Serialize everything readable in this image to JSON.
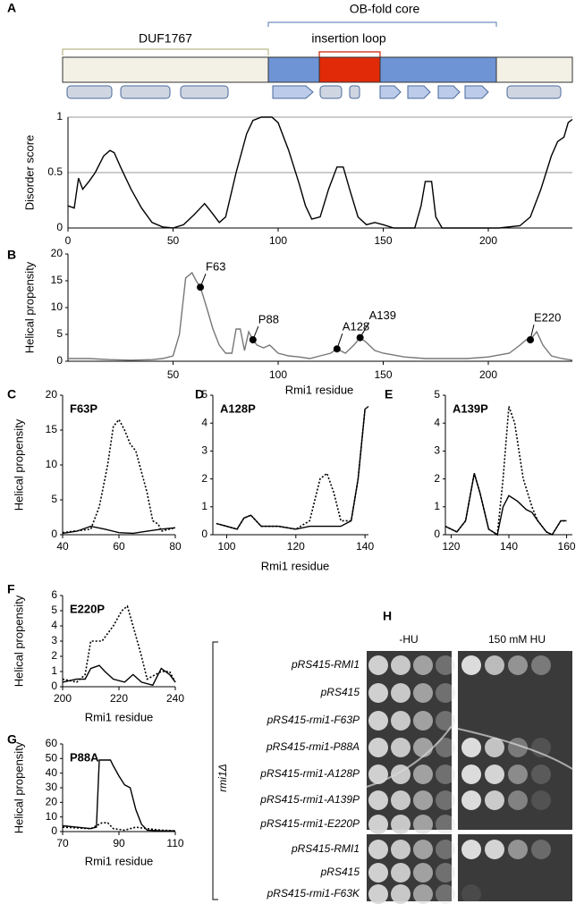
{
  "panel_labels": [
    "A",
    "B",
    "C",
    "D",
    "E",
    "F",
    "G",
    "H"
  ],
  "domain_map": {
    "duf": "DUF1767",
    "ob": "OB-fold core",
    "loop": "insertion loop"
  },
  "chart_data": [
    {
      "type": "line",
      "ylabel": "Disorder score",
      "xlim": [
        0,
        240
      ],
      "ylim": [
        0,
        1
      ],
      "xticks": [
        0,
        50,
        100,
        150,
        200
      ],
      "yticks": [
        0,
        0.5,
        1
      ],
      "grid": true,
      "series": [
        {
          "color": "#000000",
          "dash": false,
          "x": [
            0,
            3,
            5,
            7,
            10,
            13,
            17,
            20,
            22,
            25,
            30,
            35,
            40,
            45,
            50,
            55,
            60,
            63,
            65,
            68,
            72,
            75,
            80,
            85,
            88,
            92,
            97,
            100,
            105,
            110,
            113,
            116,
            120,
            124,
            128,
            131,
            134,
            138,
            142,
            146,
            150,
            155,
            160,
            165,
            168,
            170,
            173,
            175,
            178,
            185,
            195,
            205,
            215,
            220,
            225,
            230,
            233,
            236,
            238,
            240
          ],
          "values": [
            0.2,
            0.18,
            0.45,
            0.35,
            0.42,
            0.5,
            0.65,
            0.7,
            0.68,
            0.55,
            0.35,
            0.18,
            0.05,
            0.01,
            0,
            0.03,
            0.12,
            0.18,
            0.22,
            0.15,
            0.05,
            0.1,
            0.5,
            0.85,
            0.97,
            1,
            1,
            0.95,
            0.7,
            0.4,
            0.2,
            0.08,
            0.1,
            0.35,
            0.55,
            0.55,
            0.35,
            0.1,
            0.03,
            0.05,
            0.03,
            0,
            0,
            0,
            0.2,
            0.42,
            0.42,
            0.1,
            0,
            0,
            0,
            0,
            0.02,
            0.1,
            0.35,
            0.65,
            0.78,
            0.82,
            0.95,
            0.98
          ]
        }
      ]
    },
    {
      "type": "line",
      "ylabel": "Helical propensity",
      "xlabel": "Rmi1 residue",
      "xlim": [
        0,
        240
      ],
      "ylim": [
        0,
        20
      ],
      "xticks": [
        50,
        100,
        150,
        200
      ],
      "yticks": [
        0,
        5,
        10,
        15,
        20
      ],
      "grid": false,
      "series": [
        {
          "color": "#777777",
          "dash": false,
          "x": [
            0,
            10,
            20,
            30,
            40,
            45,
            50,
            53,
            56,
            59,
            61,
            63,
            66,
            69,
            72,
            75,
            78,
            80,
            82,
            84,
            86,
            88,
            90,
            93,
            96,
            100,
            105,
            110,
            115,
            120,
            125,
            128,
            132,
            136,
            139,
            142,
            146,
            150,
            160,
            170,
            180,
            190,
            200,
            210,
            215,
            218,
            220,
            223,
            226,
            230,
            235,
            240
          ],
          "values": [
            0.5,
            0.5,
            0.3,
            0.2,
            0.3,
            0.5,
            1,
            5,
            15.5,
            16.5,
            15,
            13.8,
            10,
            6,
            3,
            1.5,
            1.5,
            6,
            6,
            2,
            5.5,
            4,
            3,
            2.5,
            3,
            1.5,
            1,
            0.8,
            0.5,
            1,
            1.5,
            2.3,
            1.5,
            3,
            4.4,
            3.5,
            2,
            1.5,
            0.8,
            0.5,
            0.5,
            0.5,
            0.8,
            1.5,
            3,
            4,
            4,
            5.5,
            3,
            1,
            0.5,
            0.2
          ]
        }
      ],
      "annotations": [
        {
          "label": "F63",
          "x": 63,
          "y": 13.8
        },
        {
          "label": "P88",
          "x": 88,
          "y": 4
        },
        {
          "label": "A128",
          "x": 128,
          "y": 2.3
        },
        {
          "label": "A139",
          "x": 139,
          "y": 4.4
        },
        {
          "label": "E220",
          "x": 220,
          "y": 4
        }
      ]
    },
    {
      "type": "line",
      "title": "F63P",
      "ylabel": "Helical propensity",
      "xlim": [
        40,
        80
      ],
      "ylim": [
        0,
        20
      ],
      "xticks": [
        40,
        60,
        80
      ],
      "yticks": [
        0,
        5,
        10,
        15,
        20
      ],
      "grid": false,
      "series": [
        {
          "color": "#000000",
          "dash": true,
          "x": [
            40,
            50,
            53,
            56,
            58,
            60,
            62,
            64,
            66,
            68,
            70,
            72,
            74,
            75,
            80
          ],
          "values": [
            0.3,
            0.8,
            4,
            10,
            15.5,
            16.5,
            15,
            13,
            12,
            9,
            6,
            2,
            1.5,
            0.5,
            1
          ]
        },
        {
          "color": "#000000",
          "dash": false,
          "x": [
            40,
            45,
            50,
            55,
            60,
            65,
            70,
            75,
            80
          ],
          "values": [
            0.2,
            0.5,
            1.2,
            0.8,
            0.3,
            0.2,
            0.5,
            0.8,
            1
          ]
        }
      ]
    },
    {
      "type": "line",
      "title": "A128P",
      "xlabel": "Rmi1 residue",
      "xlim": [
        96,
        141
      ],
      "ylim": [
        0,
        5
      ],
      "xticks": [
        100,
        120,
        140
      ],
      "yticks": [
        0,
        1,
        2,
        3,
        4,
        5
      ],
      "grid": false,
      "series": [
        {
          "color": "#000000",
          "dash": true,
          "x": [
            97,
            100,
            103,
            105,
            107,
            110,
            115,
            120,
            124,
            127,
            129,
            131,
            133,
            136,
            138,
            140
          ],
          "values": [
            0.4,
            0.3,
            0.2,
            0.6,
            0.7,
            0.3,
            0.3,
            0.2,
            0.5,
            2,
            2.2,
            1.5,
            0.5,
            0.5,
            2,
            4.5
          ]
        },
        {
          "color": "#000000",
          "dash": false,
          "x": [
            97,
            100,
            103,
            105,
            107,
            110,
            115,
            120,
            124,
            127,
            130,
            133,
            136,
            138,
            140,
            141
          ],
          "values": [
            0.4,
            0.3,
            0.2,
            0.6,
            0.7,
            0.3,
            0.3,
            0.2,
            0.3,
            0.3,
            0.3,
            0.3,
            0.5,
            2,
            4.5,
            4.6
          ]
        }
      ]
    },
    {
      "type": "line",
      "title": "A139P",
      "xlim": [
        118,
        162
      ],
      "ylim": [
        0,
        5
      ],
      "xticks": [
        120,
        140,
        160
      ],
      "yticks": [
        0,
        1,
        2,
        3,
        4,
        5
      ],
      "grid": false,
      "series": [
        {
          "color": "#000000",
          "dash": true,
          "x": [
            118,
            122,
            125,
            128,
            130,
            133,
            136,
            138,
            140,
            142,
            145,
            148,
            150,
            153,
            155,
            158,
            160
          ],
          "values": [
            0.3,
            0.1,
            0.5,
            2.2,
            1.5,
            0.2,
            0,
            2,
            4.6,
            4,
            2,
            1,
            0.5,
            0.1,
            0,
            0.5,
            0.5
          ]
        },
        {
          "color": "#000000",
          "dash": false,
          "x": [
            118,
            122,
            125,
            128,
            130,
            133,
            136,
            138,
            140,
            143,
            146,
            148,
            150,
            153,
            155,
            158,
            160
          ],
          "values": [
            0.3,
            0.1,
            0.5,
            2.2,
            1.5,
            0.2,
            0,
            1,
            1.4,
            1.2,
            0.9,
            0.8,
            0.5,
            0.1,
            0,
            0.5,
            0.5
          ]
        }
      ]
    },
    {
      "type": "line",
      "title": "E220P",
      "ylabel": "Helical propensity",
      "xlabel": "Rmi1 residue",
      "xlim": [
        200,
        240
      ],
      "ylim": [
        0,
        6
      ],
      "xticks": [
        200,
        220,
        240
      ],
      "yticks": [
        0,
        1,
        2,
        3,
        4,
        5,
        6
      ],
      "grid": false,
      "series": [
        {
          "color": "#000000",
          "dash": true,
          "x": [
            200,
            205,
            208,
            210,
            214,
            218,
            221,
            223,
            225,
            228,
            230,
            235,
            238,
            240
          ],
          "values": [
            0.5,
            0.3,
            0.8,
            3,
            3,
            4,
            5,
            5.3,
            4,
            2,
            0.5,
            1,
            1,
            0.3
          ]
        },
        {
          "color": "#000000",
          "dash": false,
          "x": [
            200,
            205,
            208,
            210,
            213,
            215,
            218,
            222,
            225,
            228,
            232,
            235,
            238,
            240
          ],
          "values": [
            0.3,
            0.5,
            0.5,
            1.2,
            1.4,
            1,
            0.5,
            0.3,
            0.8,
            0.3,
            0.1,
            1.2,
            0.8,
            0.3
          ]
        }
      ]
    },
    {
      "type": "line",
      "title": "P88A",
      "ylabel": "Helical propensity",
      "xlabel": "Rmi1 residue",
      "xlim": [
        70,
        110
      ],
      "ylim": [
        0,
        60
      ],
      "xticks": [
        70,
        90,
        110
      ],
      "yticks": [
        0,
        10,
        20,
        30,
        40,
        50,
        60
      ],
      "grid": false,
      "series": [
        {
          "color": "#000000",
          "dash": false,
          "x": [
            70,
            75,
            80,
            82,
            83,
            87,
            88,
            90,
            92,
            94,
            96,
            98,
            100,
            105,
            110
          ],
          "values": [
            4,
            3,
            2,
            3,
            49,
            49,
            45,
            38,
            32,
            30,
            15,
            5,
            1,
            0.5,
            0.5
          ]
        },
        {
          "color": "#000000",
          "dash": true,
          "x": [
            70,
            75,
            80,
            84,
            86,
            88,
            92,
            96,
            100,
            105,
            110
          ],
          "values": [
            3,
            2.5,
            2,
            6,
            6,
            2,
            1,
            3,
            2,
            1,
            0.5
          ]
        }
      ]
    }
  ],
  "plate": {
    "columns": [
      "-HU",
      "150 mM HU"
    ],
    "strain": "rmi1Δ",
    "rows": [
      "pRS415-RMI1",
      "pRS415",
      "pRS415-rmi1-F63P",
      "pRS415-rmi1-P88A",
      "pRS415-rmi1-A128P",
      "pRS415-rmi1-A139P",
      "pRS415-rmi1-E220P",
      "pRS415-RMI1",
      "pRS415",
      "pRS415-rmi1-F63K"
    ]
  }
}
